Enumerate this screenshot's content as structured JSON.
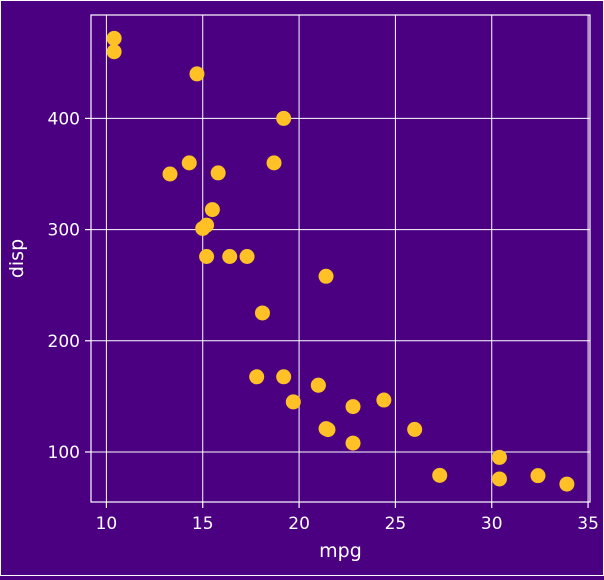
{
  "colors": {
    "background": "#4b0082",
    "panel_border": "#ffffff",
    "grid": "#ffffff",
    "points": "#ffc125",
    "text": "#ffffff"
  },
  "chart_data": {
    "type": "scatter",
    "xlabel": "mpg",
    "ylabel": "disp",
    "xlim": [
      9.2,
      35.1
    ],
    "ylim": [
      55,
      493
    ],
    "x_ticks": [
      10,
      15,
      20,
      25,
      30,
      35
    ],
    "y_ticks": [
      100,
      200,
      300,
      400
    ],
    "grid": true,
    "series": [
      {
        "x": [
          21.0,
          21.0,
          22.8,
          21.4,
          18.7,
          18.1,
          14.3,
          24.4,
          22.8,
          19.2,
          17.8,
          16.4,
          17.3,
          15.2,
          10.4,
          10.4,
          14.7,
          32.4,
          30.4,
          33.9,
          21.5,
          15.5,
          15.2,
          13.3,
          19.2,
          27.3,
          26.0,
          30.4,
          15.8,
          19.7,
          15.0,
          21.4
        ],
        "y": [
          160,
          160,
          108,
          258,
          360,
          225,
          360,
          146.7,
          140.8,
          167.6,
          167.6,
          275.8,
          275.8,
          275.8,
          472,
          460,
          440,
          78.7,
          75.7,
          71.1,
          120.1,
          318,
          304,
          350,
          400,
          79,
          120.3,
          95.1,
          351,
          145,
          301,
          121
        ]
      }
    ]
  }
}
